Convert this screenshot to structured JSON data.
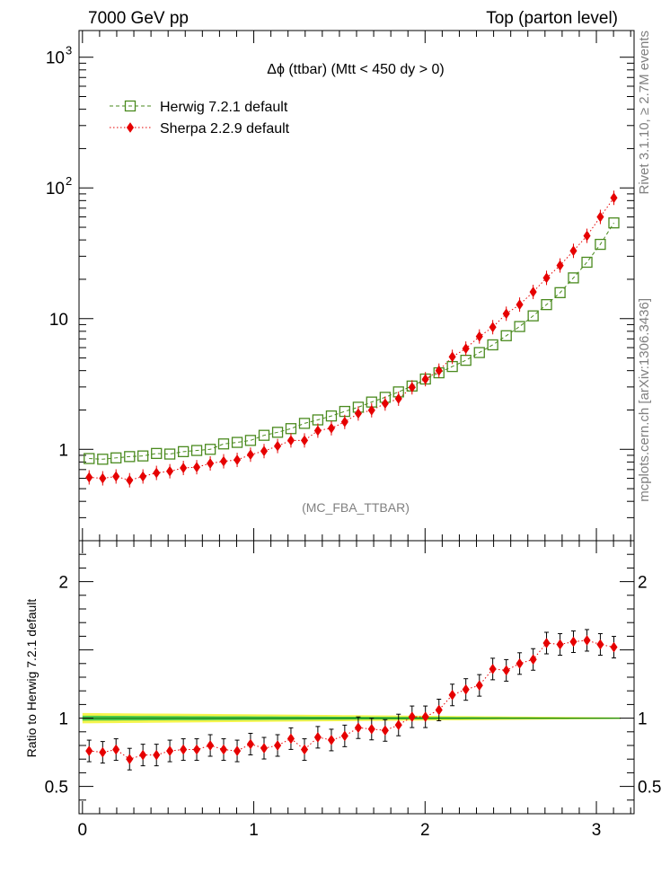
{
  "header": {
    "left": "7000 GeV pp",
    "right": "Top (parton level)"
  },
  "side_labels": {
    "rivet": "Rivet 3.1.10, ≥ 2.7M events",
    "mcplots": "mcplots.cern.ch [arXiv:1306.3436]"
  },
  "chart_data": [
    {
      "type": "scatter",
      "title": "Δϕ (ttbar) (Mtt < 450 dy > 0)",
      "watermark": "(MC_FBA_TTBAR)",
      "yscale": "log",
      "xlim": [
        -0.02,
        3.22
      ],
      "ylim": [
        0.2,
        1600
      ],
      "yticks": [
        {
          "value": 1,
          "label": "1"
        },
        {
          "value": 10,
          "label": "10"
        },
        {
          "value": 100,
          "label": "10",
          "sup": "2"
        },
        {
          "value": 1000,
          "label": "10",
          "sup": "3"
        }
      ],
      "legend_position": "top-left",
      "x": [
        0.039,
        0.118,
        0.196,
        0.275,
        0.353,
        0.432,
        0.51,
        0.589,
        0.667,
        0.746,
        0.824,
        0.903,
        0.981,
        1.06,
        1.139,
        1.217,
        1.296,
        1.374,
        1.453,
        1.531,
        1.61,
        1.688,
        1.767,
        1.845,
        1.924,
        2.002,
        2.081,
        2.159,
        2.238,
        2.317,
        2.395,
        2.474,
        2.552,
        2.631,
        2.709,
        2.788,
        2.866,
        2.945,
        3.023,
        3.102
      ],
      "series": [
        {
          "name": "Herwig 7.2.1 default",
          "color": "#4a8a1e",
          "marker": "open-square",
          "line": "dashed",
          "values": [
            0.85,
            0.84,
            0.86,
            0.88,
            0.89,
            0.93,
            0.92,
            0.96,
            0.98,
            1.0,
            1.1,
            1.13,
            1.17,
            1.28,
            1.35,
            1.44,
            1.58,
            1.68,
            1.8,
            1.95,
            2.1,
            2.3,
            2.5,
            2.75,
            3.05,
            3.45,
            3.85,
            4.3,
            4.8,
            5.5,
            6.3,
            7.4,
            8.7,
            10.5,
            12.8,
            15.8,
            20.5,
            27.0,
            37.0,
            54.0
          ]
        },
        {
          "name": "Sherpa 2.2.9 default",
          "color": "#e60000",
          "marker": "filled-diamond",
          "line": "dotted",
          "values": [
            0.61,
            0.6,
            0.62,
            0.58,
            0.62,
            0.66,
            0.68,
            0.72,
            0.73,
            0.78,
            0.81,
            0.83,
            0.91,
            0.97,
            1.06,
            1.17,
            1.17,
            1.39,
            1.45,
            1.62,
            1.88,
            1.99,
            2.24,
            2.44,
            2.98,
            3.44,
            4.0,
            5.1,
            5.9,
            7.3,
            8.6,
            10.9,
            12.8,
            16.0,
            20.5,
            25.5,
            33.0,
            43.0,
            60.0,
            84.0
          ]
        }
      ]
    },
    {
      "type": "scatter",
      "ylabel": "Ratio to Herwig 7.2.1 default",
      "xlim": [
        -0.02,
        3.22
      ],
      "ylim": [
        0.3,
        2.3
      ],
      "xticks": [
        0,
        1,
        2,
        3
      ],
      "xtick_labels": [
        "0",
        "1",
        "2",
        "3"
      ],
      "yticks": [
        0.5,
        1,
        2
      ],
      "ytick_labels": [
        "0.5",
        "1",
        "2"
      ],
      "reference": 1,
      "band_colors": {
        "inner": "#4cc94c",
        "outer": "#f5f54d",
        "reference": "#1a8a1a"
      },
      "series": [
        {
          "name": "Sherpa 2.2.9 default",
          "color": "#e60000",
          "values": [
            0.76,
            0.75,
            0.77,
            0.7,
            0.73,
            0.73,
            0.76,
            0.77,
            0.77,
            0.8,
            0.77,
            0.76,
            0.81,
            0.78,
            0.8,
            0.85,
            0.77,
            0.86,
            0.84,
            0.87,
            0.93,
            0.92,
            0.91,
            0.95,
            1.01,
            1.01,
            1.06,
            1.17,
            1.21,
            1.24,
            1.36,
            1.35,
            1.4,
            1.43,
            1.55,
            1.54,
            1.56,
            1.57,
            1.54,
            1.52
          ]
        }
      ]
    }
  ]
}
